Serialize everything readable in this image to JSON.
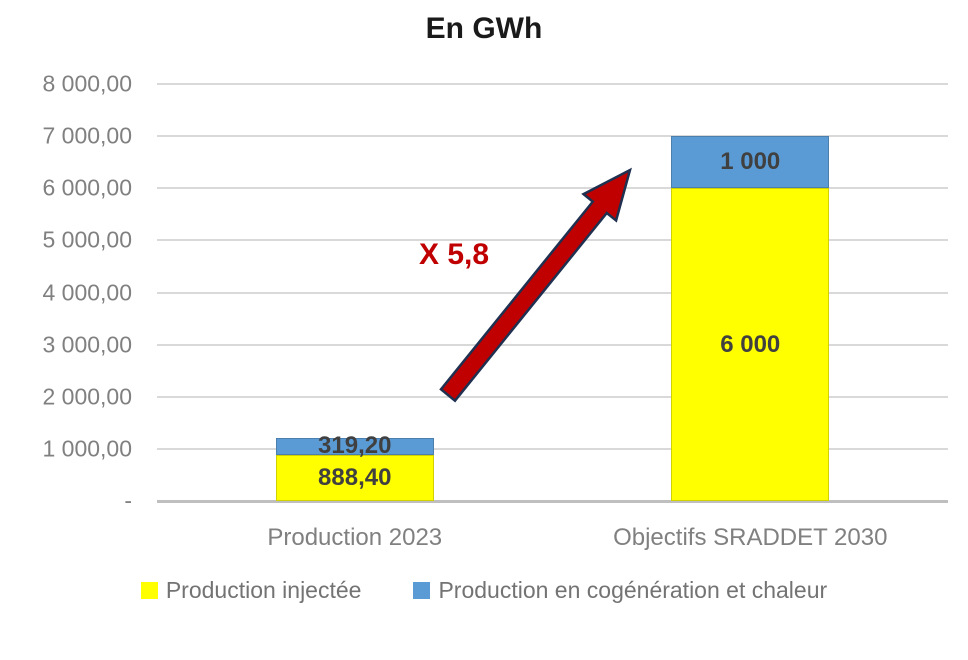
{
  "colors": {
    "background": "#FFFFFF",
    "title": "#1A1A1A",
    "grid": "#D9D9D9",
    "axis_line": "#BFBFBF",
    "axis_text": "#808080",
    "data_label": "#404040",
    "legend_text": "#737373",
    "annotation": "#C00000",
    "arrow_fill": "#C00000",
    "arrow_stroke": "#1F3050",
    "series_yellow": "#FFFF00",
    "series_blue": "#5B9BD5"
  },
  "chart_data": {
    "type": "bar",
    "stacked": true,
    "title": "En GWh",
    "categories": [
      "Production 2023",
      "Objectifs SRADDET 2030"
    ],
    "series": [
      {
        "name": "Production injectée",
        "color": "#FFFF00",
        "values": [
          888.4,
          6000
        ],
        "labels": [
          "888,40",
          "6 000"
        ]
      },
      {
        "name": "Production en cogénération et chaleur",
        "color": "#5B9BD5",
        "values": [
          319.2,
          1000
        ],
        "labels": [
          "319,20",
          "1 000"
        ]
      }
    ],
    "ylim": [
      0,
      8000
    ],
    "y_axis": {
      "tick_values": [
        8000,
        7000,
        6000,
        5000,
        4000,
        3000,
        2000,
        1000,
        0
      ],
      "tick_labels": [
        "8 000,00",
        "7 000,00",
        "6 000,00",
        "5 000,00",
        "4 000,00",
        "3 000,00",
        "2 000,00",
        "1 000,00",
        "-"
      ]
    },
    "grid": true,
    "legend_position": "bottom",
    "annotation": {
      "text": "X 5,8",
      "arrow": {
        "from_x": 448,
        "from_y": 395,
        "to_x": 630,
        "to_y": 170
      }
    }
  }
}
